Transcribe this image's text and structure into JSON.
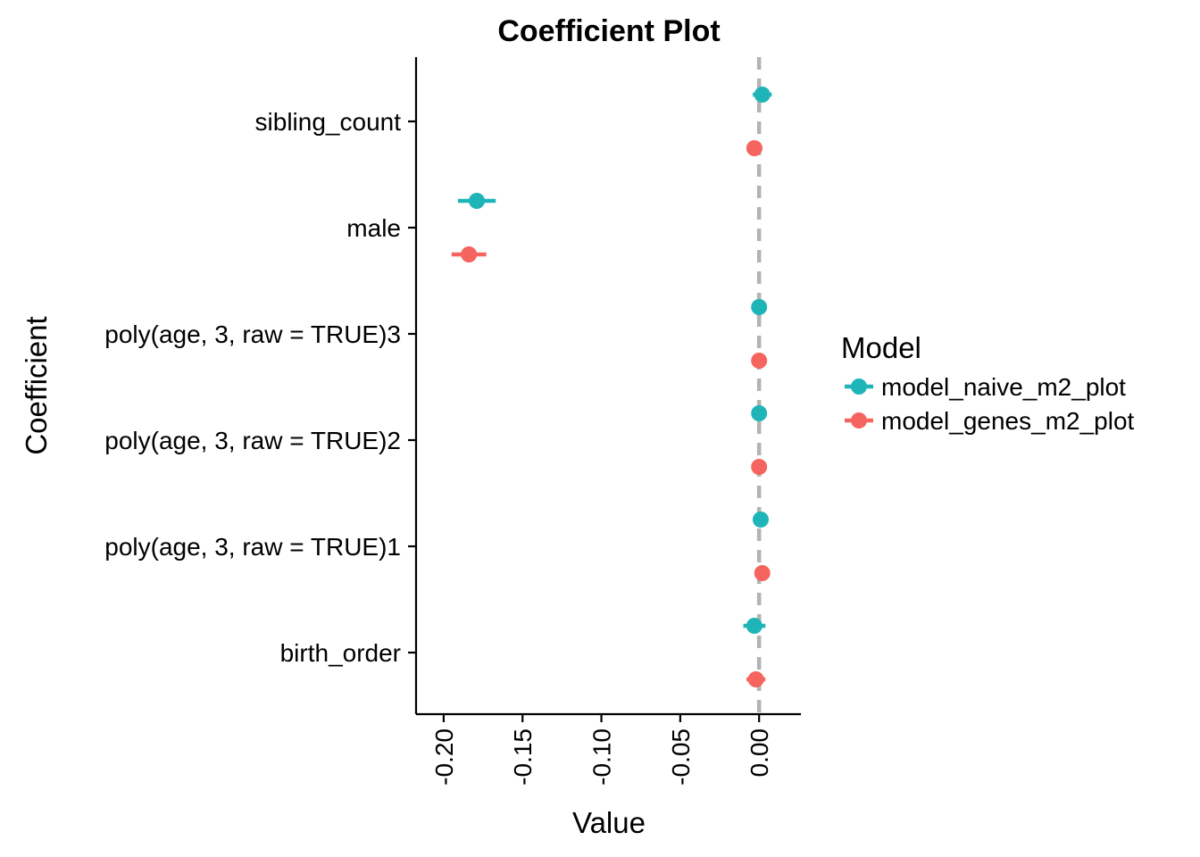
{
  "chart_data": {
    "type": "scatter",
    "subtype": "coefficient-plot",
    "title": "Coefficient Plot",
    "xlabel": "Value",
    "ylabel": "Coefficient",
    "xlim": [
      -0.2175,
      0.0265
    ],
    "x_ticks": [
      -0.2,
      -0.15,
      -0.1,
      -0.05,
      0.0
    ],
    "x_tick_labels": [
      "-0.20",
      "-0.15",
      "-0.10",
      "-0.05",
      "0.00"
    ],
    "categories": [
      "sibling_count",
      "male",
      "poly(age, 3, raw = TRUE)3",
      "poly(age, 3, raw = TRUE)2",
      "poly(age, 3, raw = TRUE)1",
      "birth_order"
    ],
    "reference_line": {
      "x": 0,
      "style": "dashed",
      "color": "#b3b3b3"
    },
    "legend": {
      "title": "Model",
      "position": "right"
    },
    "grid": false,
    "series": [
      {
        "name": "model_naive_m2_plot",
        "color": "#1fb5b8",
        "estimates": [
          0.002,
          -0.179,
          0.0,
          0.0,
          0.001,
          -0.003
        ],
        "ci_low": [
          -0.004,
          -0.191,
          -0.001,
          -0.001,
          0.0,
          -0.01
        ],
        "ci_high": [
          0.008,
          -0.167,
          0.001,
          0.001,
          0.002,
          0.004
        ]
      },
      {
        "name": "model_genes_m2_plot",
        "color": "#f5645f",
        "estimates": [
          -0.003,
          -0.184,
          0.0,
          0.0,
          0.002,
          -0.002
        ],
        "ci_low": [
          -0.008,
          -0.195,
          -0.001,
          -0.001,
          0.001,
          -0.008
        ],
        "ci_high": [
          0.002,
          -0.173,
          0.001,
          0.001,
          0.003,
          0.004
        ]
      }
    ]
  }
}
